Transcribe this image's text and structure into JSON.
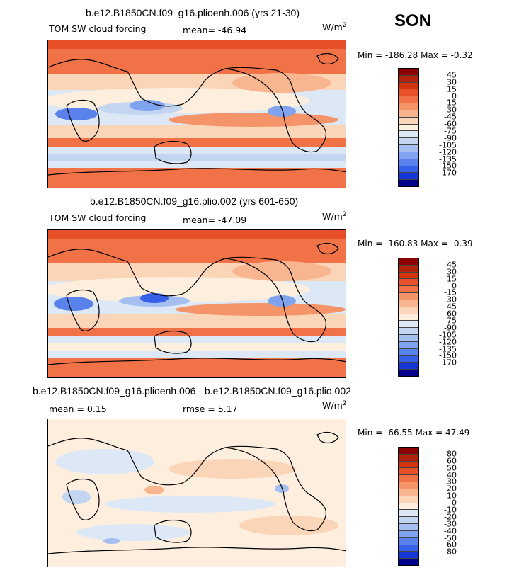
{
  "season": "SON",
  "panels": [
    {
      "title": "b.e12.B1850CN.f09_g16.plioenh.006 (yrs 21-30)",
      "variable": "TOM SW cloud forcing",
      "mean_text": "mean= -46.94",
      "units": "W/m",
      "units_exp": "2",
      "minmax_text": "Min = -186.28 Max =  -0.32",
      "levels": [
        "45",
        "30",
        "15",
        "0",
        "-15",
        "-30",
        "-45",
        "-60",
        "-75",
        "-90",
        "-105",
        "-120",
        "-135",
        "-150",
        "-170"
      ],
      "colors": [
        "#8b0000",
        "#b22208",
        "#d3340e",
        "#e8502a",
        "#f07246",
        "#f49468",
        "#f7b590",
        "#fad5b8",
        "#fdeede",
        "#dde8f6",
        "#c3d5f1",
        "#a4bff0",
        "#7fa3ee",
        "#5a82ec",
        "#3560e8",
        "#1537d8",
        "#00008b"
      ]
    },
    {
      "title": "b.e12.B1850CN.f09_g16.plio.002 (yrs 601-650)",
      "variable": "TOM SW cloud forcing",
      "mean_text": "mean= -47.09",
      "units": "W/m",
      "units_exp": "2",
      "minmax_text": "Min = -160.83 Max =  -0.39",
      "levels": [
        "45",
        "30",
        "15",
        "0",
        "-15",
        "-30",
        "-45",
        "-60",
        "-75",
        "-90",
        "-105",
        "-120",
        "-135",
        "-150",
        "-170"
      ],
      "colors": [
        "#8b0000",
        "#b22208",
        "#d3340e",
        "#e8502a",
        "#f07246",
        "#f49468",
        "#f7b590",
        "#fad5b8",
        "#fdeede",
        "#dde8f6",
        "#c3d5f1",
        "#a4bff0",
        "#7fa3ee",
        "#5a82ec",
        "#3560e8",
        "#1537d8",
        "#00008b"
      ]
    },
    {
      "title": "b.e12.B1850CN.f09_g16.plioenh.006 - b.e12.B1850CN.f09_g16.plio.002",
      "mean_text": "mean =   0.15",
      "rmse_text": "rmse =    5.17",
      "units": "W/m",
      "units_exp": "2",
      "minmax_text": "Min = -66.55 Max =  47.49",
      "levels": [
        "80",
        "60",
        "50",
        "40",
        "30",
        "20",
        "10",
        "0",
        "-10",
        "-20",
        "-30",
        "-40",
        "-50",
        "-60",
        "-80"
      ],
      "colors": [
        "#8b0000",
        "#b22208",
        "#d3340e",
        "#e8502a",
        "#f07246",
        "#f49468",
        "#f7b590",
        "#fad5b8",
        "#fdeede",
        "#dde8f6",
        "#c3d5f1",
        "#a4bff0",
        "#7fa3ee",
        "#5a82ec",
        "#3560e8",
        "#1537d8",
        "#00008b"
      ]
    }
  ]
}
